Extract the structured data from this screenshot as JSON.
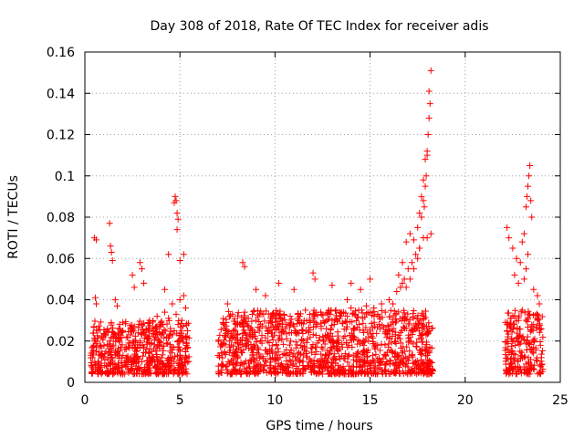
{
  "chart_data": {
    "type": "scatter",
    "title": "Day 308 of 2018, Rate Of TEC Index for receiver adis",
    "xlabel": "GPS time / hours",
    "ylabel": "ROTI / TECUs",
    "xlim": [
      0,
      25
    ],
    "ylim": [
      0,
      0.16
    ],
    "xticks": [
      0,
      5,
      10,
      15,
      20,
      25
    ],
    "xtick_labels": [
      "0",
      "5",
      "10",
      "15",
      "20",
      "25"
    ],
    "yticks": [
      0,
      0.02,
      0.04,
      0.06,
      0.08,
      0.1,
      0.12,
      0.14,
      0.16
    ],
    "ytick_labels": [
      "0",
      "0.02",
      "0.04",
      "0.06",
      "0.08",
      "0.1",
      "0.12",
      "0.14",
      "0.16"
    ],
    "grid": true,
    "marker": "+",
    "series_color": "#ff0000",
    "series": [
      {
        "name": "ROTI",
        "x": [
          0.4,
          0.5,
          0.6,
          0.7,
          0.8,
          0.9,
          1.0,
          1.1,
          1.2,
          1.3,
          1.4,
          1.5,
          1.6,
          1.7,
          1.8,
          1.9,
          2.0,
          2.1,
          2.2,
          2.3,
          2.4,
          2.5,
          2.6,
          2.7,
          2.8,
          2.9,
          3.0,
          3.1,
          3.2,
          3.3,
          3.4,
          3.5,
          3.6,
          3.7,
          3.8,
          3.9,
          4.0,
          4.1,
          4.2,
          4.3,
          4.4,
          4.5,
          4.6,
          4.7,
          4.8,
          4.9,
          5.0,
          5.1,
          5.2,
          5.3,
          5.4,
          0.5,
          0.6,
          0.55,
          0.6,
          1.3,
          1.35,
          1.4,
          1.45,
          1.6,
          1.7,
          2.5,
          2.6,
          2.9,
          3.0,
          3.1,
          4.2,
          4.4,
          4.7,
          4.75,
          4.8,
          4.85,
          4.9,
          4.85,
          5.0,
          5.2,
          7.2,
          7.4,
          7.6,
          7.8,
          8.0,
          8.2,
          8.4,
          8.6,
          8.8,
          9.0,
          9.2,
          9.4,
          9.6,
          9.8,
          10.0,
          10.2,
          10.4,
          10.6,
          10.8,
          11.0,
          11.2,
          11.4,
          11.6,
          11.8,
          12.0,
          12.2,
          12.4,
          12.6,
          12.8,
          13.0,
          13.2,
          13.4,
          13.6,
          13.8,
          14.0,
          14.2,
          14.4,
          14.6,
          14.8,
          15.0,
          15.2,
          15.4,
          15.6,
          15.8,
          16.0,
          16.2,
          16.4,
          16.6,
          16.8,
          17.0,
          17.2,
          17.4,
          17.6,
          17.8,
          18.0,
          18.2,
          7.5,
          8.3,
          8.4,
          9.0,
          9.5,
          10.2,
          11.0,
          12.0,
          12.1,
          13.0,
          13.8,
          14.0,
          14.5,
          15.0,
          16.5,
          16.7,
          16.9,
          17.1,
          17.3,
          17.5,
          17.6,
          17.7,
          17.8,
          17.85,
          17.9,
          17.95,
          18.0,
          18.05,
          18.1,
          18.15,
          18.2,
          18.1,
          18.0,
          17.9,
          17.8,
          17.7,
          17.6,
          17.5,
          17.3,
          17.1,
          16.9,
          16.7,
          22.2,
          22.4,
          22.6,
          22.8,
          23.0,
          23.2,
          23.4,
          23.6,
          23.8,
          24.0,
          22.2,
          22.3,
          22.5,
          22.7,
          22.9,
          23.0,
          23.1,
          23.2,
          23.25,
          23.3,
          23.35,
          23.4,
          23.45,
          23.5,
          23.3,
          23.2,
          23.1,
          23.6,
          23.8,
          23.9,
          22.8,
          22.6
        ],
        "y": [
          0.012,
          0.02,
          0.015,
          0.01,
          0.018,
          0.013,
          0.022,
          0.015,
          0.012,
          0.02,
          0.016,
          0.018,
          0.023,
          0.014,
          0.021,
          0.017,
          0.025,
          0.016,
          0.022,
          0.019,
          0.026,
          0.018,
          0.027,
          0.015,
          0.024,
          0.02,
          0.028,
          0.017,
          0.023,
          0.021,
          0.03,
          0.019,
          0.025,
          0.022,
          0.032,
          0.02,
          0.029,
          0.024,
          0.034,
          0.022,
          0.031,
          0.026,
          0.038,
          0.025,
          0.033,
          0.028,
          0.04,
          0.03,
          0.042,
          0.036,
          0.025,
          0.07,
          0.069,
          0.041,
          0.038,
          0.077,
          0.066,
          0.063,
          0.059,
          0.04,
          0.037,
          0.052,
          0.046,
          0.058,
          0.055,
          0.048,
          0.045,
          0.062,
          0.087,
          0.09,
          0.088,
          0.082,
          0.079,
          0.074,
          0.059,
          0.062,
          0.018,
          0.022,
          0.02,
          0.025,
          0.023,
          0.028,
          0.024,
          0.027,
          0.022,
          0.03,
          0.026,
          0.033,
          0.025,
          0.029,
          0.031,
          0.026,
          0.03,
          0.028,
          0.032,
          0.027,
          0.033,
          0.029,
          0.035,
          0.03,
          0.031,
          0.028,
          0.034,
          0.029,
          0.033,
          0.03,
          0.035,
          0.031,
          0.034,
          0.032,
          0.036,
          0.033,
          0.035,
          0.031,
          0.037,
          0.034,
          0.036,
          0.033,
          0.038,
          0.034,
          0.04,
          0.038,
          0.044,
          0.046,
          0.05,
          0.055,
          0.058,
          0.062,
          0.065,
          0.07,
          0.07,
          0.072,
          0.038,
          0.058,
          0.056,
          0.045,
          0.042,
          0.048,
          0.045,
          0.053,
          0.05,
          0.047,
          0.04,
          0.048,
          0.045,
          0.05,
          0.052,
          0.058,
          0.068,
          0.072,
          0.069,
          0.075,
          0.082,
          0.09,
          0.088,
          0.085,
          0.095,
          0.1,
          0.11,
          0.12,
          0.128,
          0.135,
          0.151,
          0.141,
          0.112,
          0.108,
          0.098,
          0.08,
          0.065,
          0.06,
          0.055,
          0.05,
          0.046,
          0.048,
          0.025,
          0.028,
          0.032,
          0.03,
          0.035,
          0.03,
          0.033,
          0.028,
          0.031,
          0.026,
          0.075,
          0.07,
          0.065,
          0.06,
          0.058,
          0.068,
          0.072,
          0.085,
          0.09,
          0.095,
          0.1,
          0.105,
          0.088,
          0.08,
          0.062,
          0.055,
          0.05,
          0.045,
          0.042,
          0.038,
          0.048,
          0.052
        ]
      }
    ],
    "bands": [
      {
        "x_start": 0.3,
        "x_end": 5.5,
        "y_low": 0.004,
        "y_high": 0.03
      },
      {
        "x_start": 7.0,
        "x_end": 18.3,
        "y_low": 0.004,
        "y_high": 0.035
      },
      {
        "x_start": 22.1,
        "x_end": 24.1,
        "y_low": 0.004,
        "y_high": 0.035
      }
    ]
  }
}
